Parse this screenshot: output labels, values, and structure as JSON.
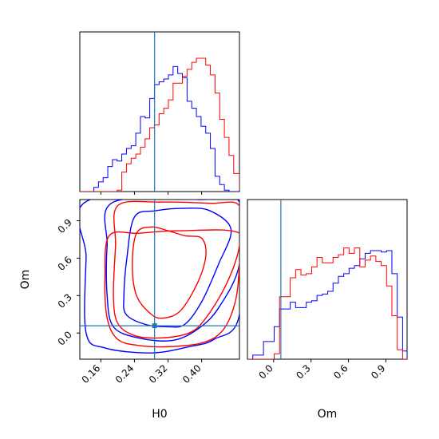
{
  "chart_data": {
    "type": "corner",
    "parameters": [
      "H0",
      "Om"
    ],
    "axis_labels": {
      "x_left": "H0",
      "x_right": "Om",
      "y_left": "Om"
    },
    "truth": {
      "H0": 0.288,
      "Om": 0.058
    },
    "truth_color": "#1f77b4",
    "series": [
      {
        "color": "#0000ff"
      },
      {
        "color": "#ff0000"
      }
    ],
    "h0_axis": {
      "range": [
        0.11,
        0.49
      ],
      "ticks": [
        0.16,
        0.24,
        0.32,
        0.4
      ],
      "tick_labels": [
        "0.16",
        "0.24",
        "0.32",
        "0.40"
      ]
    },
    "om_axis": {
      "range": [
        -0.21,
        1.07
      ],
      "ticks": [
        0.0,
        0.3,
        0.6,
        0.9
      ],
      "tick_labels": [
        "0.0",
        "0.3",
        "0.6",
        "0.9"
      ]
    },
    "hist_h0": {
      "bin_edges": [
        0.11,
        0.1211,
        0.1322,
        0.1433,
        0.1544,
        0.1655,
        0.1766,
        0.1877,
        0.1988,
        0.2099,
        0.221,
        0.2321,
        0.2432,
        0.2543,
        0.2654,
        0.2765,
        0.2876,
        0.2987,
        0.3098,
        0.3209,
        0.332,
        0.3431,
        0.3542,
        0.3653,
        0.3764,
        0.3875,
        0.3986,
        0.4097,
        0.4208,
        0.4319,
        0.443,
        0.4541,
        0.4652,
        0.4763,
        0.49
      ],
      "blue": [
        0,
        0,
        0,
        0.03,
        0.07,
        0.1,
        0.18,
        0.23,
        0.22,
        0.27,
        0.31,
        0.33,
        0.42,
        0.54,
        0.53,
        0.67,
        0.77,
        0.79,
        0.81,
        0.84,
        0.9,
        0.85,
        0.82,
        0.65,
        0.6,
        0.54,
        0.47,
        0.42,
        0.31,
        0.11,
        0.05,
        0.01,
        0,
        0,
        0
      ],
      "red": [
        0,
        0,
        0,
        0,
        0,
        0,
        0,
        0,
        0.01,
        0.14,
        0.2,
        0.24,
        0.27,
        0.32,
        0.38,
        0.46,
        0.48,
        0.56,
        0.6,
        0.66,
        0.78,
        0.78,
        0.83,
        0.88,
        0.93,
        0.96,
        0.96,
        0.91,
        0.84,
        0.71,
        0.52,
        0.39,
        0.26,
        0.13,
        0.01
      ]
    },
    "hist_om": {
      "bin_edges": [
        -0.21,
        -0.1671,
        -0.1242,
        -0.0813,
        -0.0384,
        0.0045,
        0.0474,
        0.0903,
        0.1332,
        0.1761,
        0.219,
        0.2619,
        0.3048,
        0.3477,
        0.3906,
        0.4335,
        0.4764,
        0.5193,
        0.5622,
        0.6051,
        0.648,
        0.6909,
        0.7338,
        0.7767,
        0.8196,
        0.8625,
        0.9054,
        0.9483,
        0.9912,
        1.0341,
        1.07
      ],
      "blue": [
        0,
        0.03,
        0.03,
        0.13,
        0.13,
        0.24,
        0.37,
        0.37,
        0.42,
        0.38,
        0.38,
        0.42,
        0.43,
        0.47,
        0.48,
        0.5,
        0.56,
        0.61,
        0.63,
        0.67,
        0.69,
        0.74,
        0.78,
        0.8,
        0.8,
        0.79,
        0.8,
        0.63,
        0.31,
        0.06,
        0.01
      ],
      "red": [
        0,
        0,
        0,
        0,
        0,
        0.04,
        0.46,
        0.46,
        0.6,
        0.66,
        0.62,
        0.63,
        0.68,
        0.75,
        0.71,
        0.71,
        0.75,
        0.77,
        0.82,
        0.78,
        0.82,
        0.68,
        0.73,
        0.76,
        0.72,
        0.69,
        0.54,
        0.32,
        0.07,
        0,
        0
      ]
    },
    "contours_2d": {
      "blue": [
        [
          [
            0.24,
            0.93
          ],
          [
            0.222,
            0.6
          ],
          [
            0.215,
            0.3
          ],
          [
            0.22,
            0.15
          ],
          [
            0.265,
            0.07
          ],
          [
            0.32,
            0.05
          ],
          [
            0.36,
            0.07
          ],
          [
            0.4,
            0.25
          ],
          [
            0.44,
            0.55
          ],
          [
            0.47,
            0.83
          ],
          [
            0.42,
            0.98
          ],
          [
            0.36,
            1.0
          ],
          [
            0.29,
            0.98
          ]
        ],
        [
          [
            0.19,
            1.05
          ],
          [
            0.175,
            0.7
          ],
          [
            0.175,
            0.3
          ],
          [
            0.19,
            0.05
          ],
          [
            0.25,
            -0.04
          ],
          [
            0.33,
            -0.06
          ],
          [
            0.39,
            0.03
          ],
          [
            0.44,
            0.2
          ],
          [
            0.49,
            0.55
          ],
          [
            0.49,
            1.05
          ],
          [
            0.4,
            1.07
          ]
        ],
        [
          [
            0.135,
            1.07
          ],
          [
            0.125,
            0.6
          ],
          [
            0.125,
            0.0
          ],
          [
            0.17,
            -0.12
          ],
          [
            0.28,
            -0.16
          ],
          [
            0.37,
            -0.11
          ],
          [
            0.43,
            -0.05
          ],
          [
            0.49,
            0.15
          ],
          [
            0.49,
            1.07
          ]
        ]
      ],
      "red": [
        [
          [
            0.245,
            0.8
          ],
          [
            0.235,
            0.55
          ],
          [
            0.245,
            0.3
          ],
          [
            0.28,
            0.15
          ],
          [
            0.31,
            0.12
          ],
          [
            0.35,
            0.18
          ],
          [
            0.39,
            0.4
          ],
          [
            0.41,
            0.62
          ],
          [
            0.4,
            0.76
          ],
          [
            0.36,
            0.78
          ],
          [
            0.32,
            0.82
          ],
          [
            0.28,
            0.85
          ]
        ],
        [
          [
            0.2,
            1.02
          ],
          [
            0.195,
            0.7
          ],
          [
            0.19,
            0.3
          ],
          [
            0.2,
            0.08
          ],
          [
            0.24,
            -0.02
          ],
          [
            0.3,
            -0.04
          ],
          [
            0.37,
            0.0
          ],
          [
            0.41,
            0.12
          ],
          [
            0.46,
            0.4
          ],
          [
            0.49,
            0.7
          ],
          [
            0.49,
            1.02
          ],
          [
            0.42,
            1.04
          ],
          [
            0.3,
            1.05
          ]
        ],
        [
          [
            0.18,
            0.78
          ],
          [
            0.17,
            0.45
          ],
          [
            0.175,
            0.12
          ],
          [
            0.2,
            -0.05
          ],
          [
            0.25,
            -0.1
          ],
          [
            0.32,
            -0.11
          ],
          [
            0.4,
            -0.08
          ],
          [
            0.45,
            0.02
          ],
          [
            0.48,
            0.25
          ],
          [
            0.49,
            0.55
          ],
          [
            0.49,
            0.8
          ],
          [
            0.35,
            0.82
          ],
          [
            0.25,
            0.8
          ]
        ]
      ]
    }
  }
}
